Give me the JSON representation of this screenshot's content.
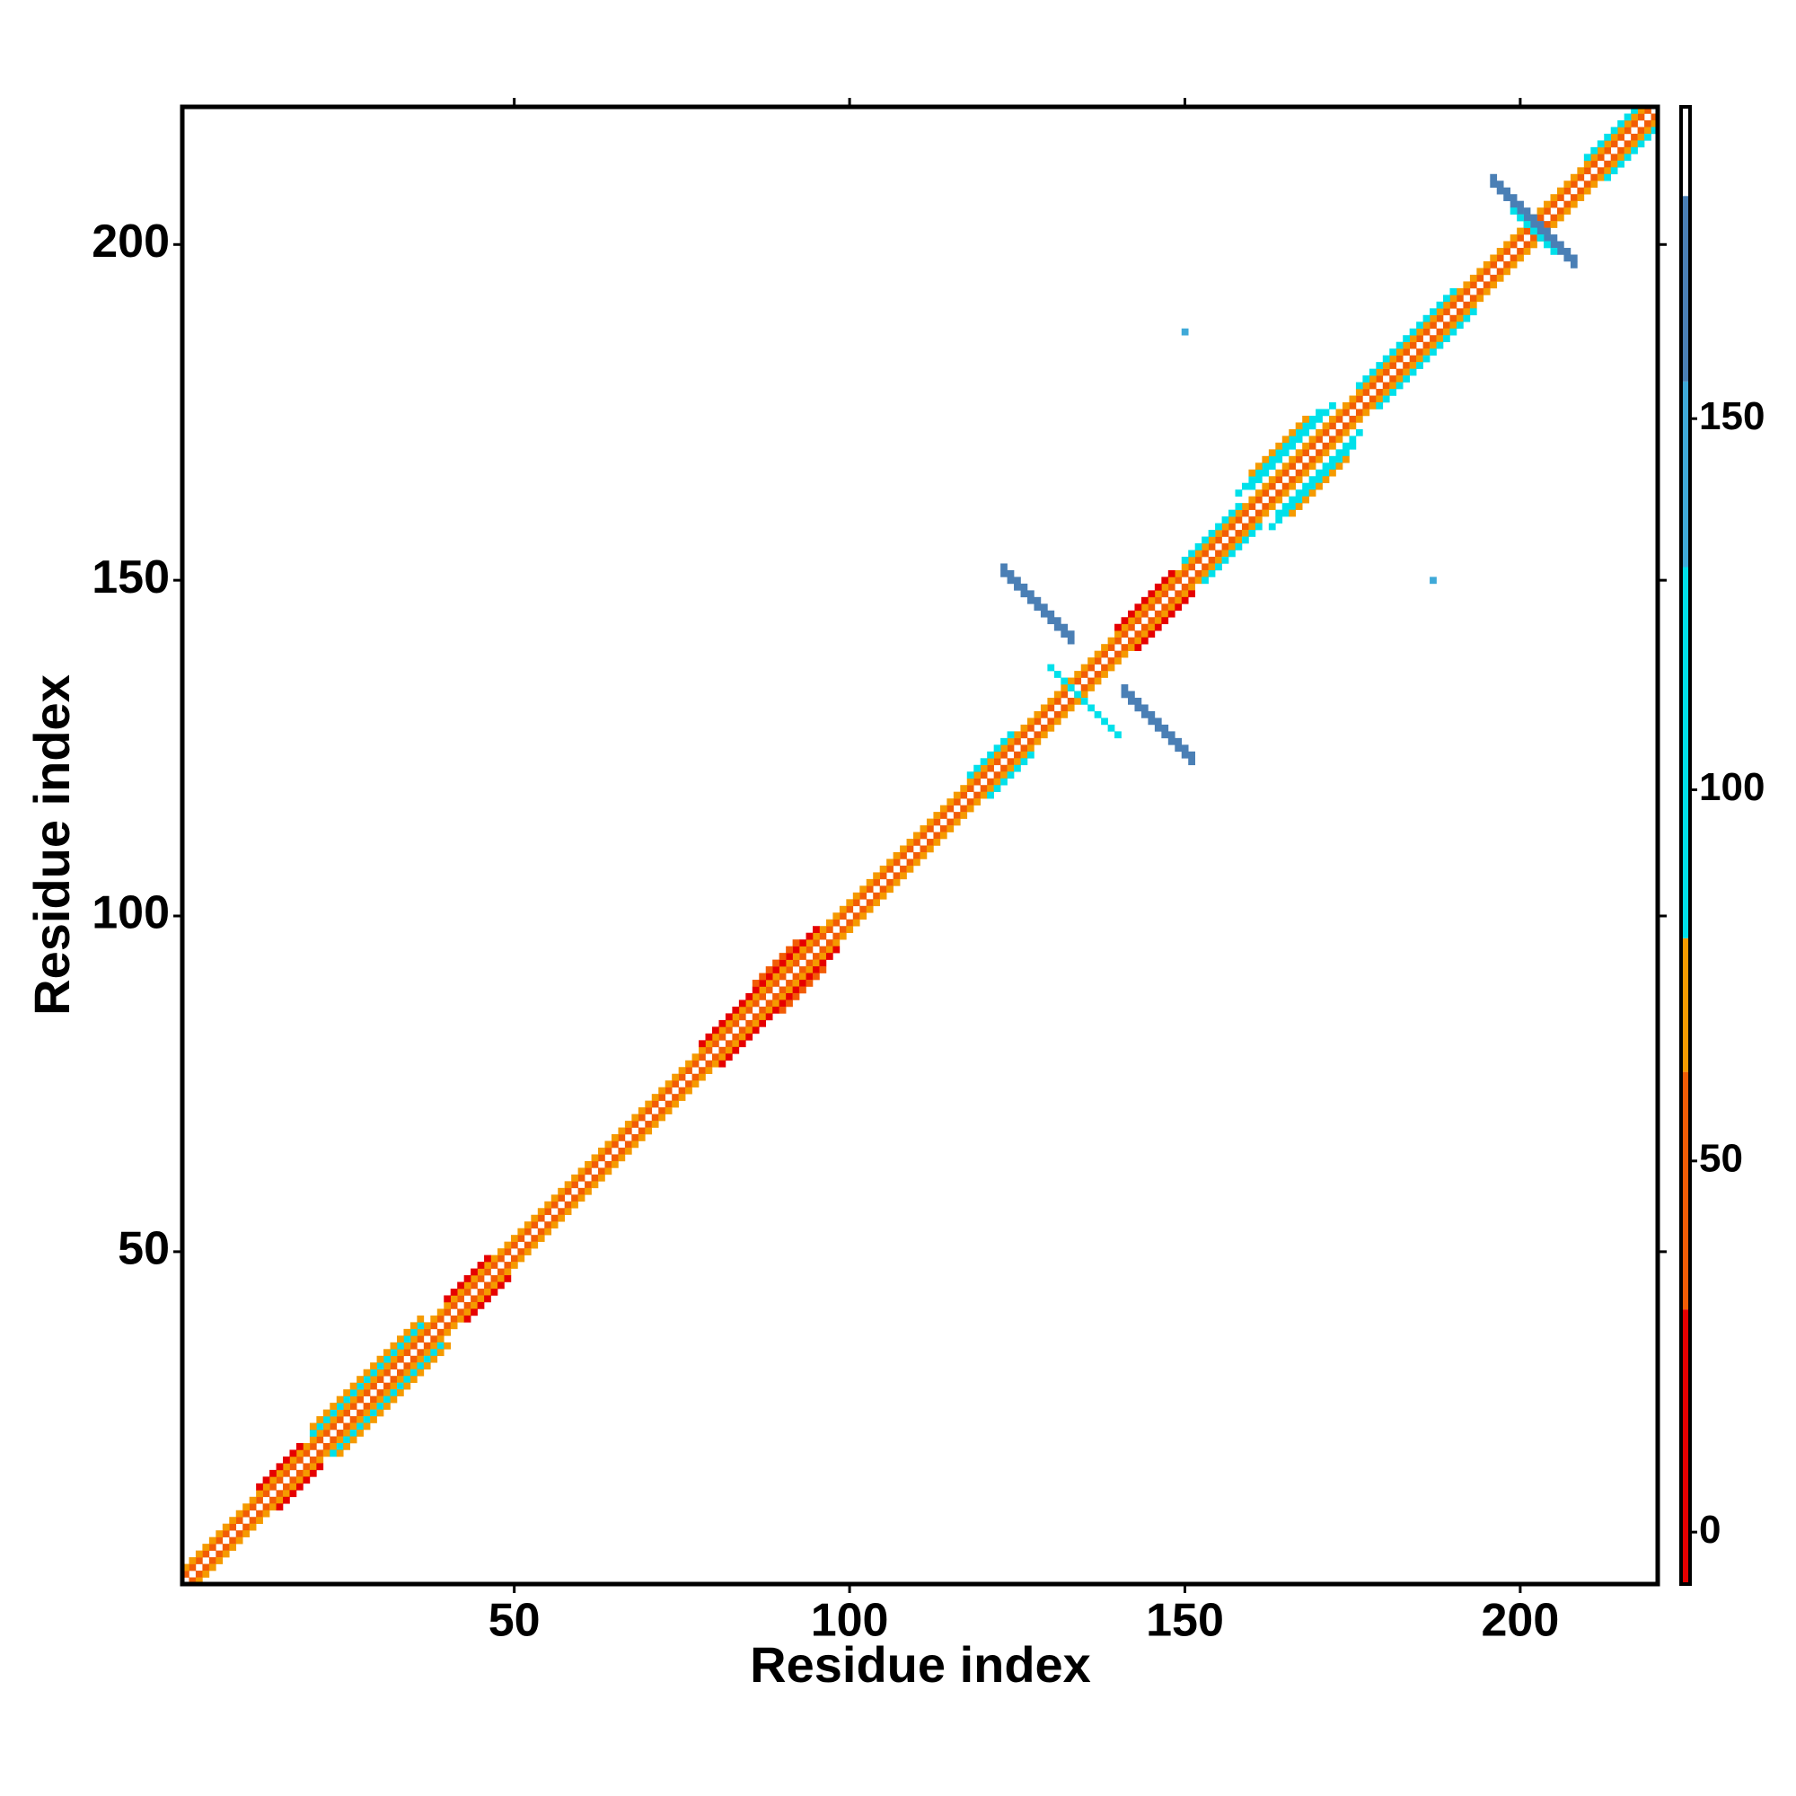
{
  "chart_data": {
    "type": "contact-map",
    "xlabel": "Residue index",
    "ylabel": "Residue index",
    "xlim": [
      0.5,
      220.5
    ],
    "ylim": [
      0.5,
      220.5
    ],
    "xticks": [
      50,
      100,
      150,
      200
    ],
    "yticks": [
      50,
      100,
      150,
      200
    ],
    "bands": [
      {
        "offset": 1,
        "start": 1,
        "end": 219,
        "value": 45
      },
      {
        "offset": 2,
        "start": 1,
        "end": 218,
        "value": 65
      },
      {
        "offset": 3,
        "start": 12,
        "end": 18,
        "value": 10
      },
      {
        "offset": 3,
        "start": 40,
        "end": 46,
        "value": 10
      },
      {
        "offset": 3,
        "start": 78,
        "end": 95,
        "value": 10
      },
      {
        "offset": 3,
        "start": 140,
        "end": 148,
        "value": 10
      },
      {
        "offset": 3,
        "start": 20,
        "end": 36,
        "value": 95
      },
      {
        "offset": 3,
        "start": 118,
        "end": 124,
        "value": 95
      },
      {
        "offset": 3,
        "start": 150,
        "end": 158,
        "value": 95
      },
      {
        "offset": 3,
        "start": 176,
        "end": 190,
        "value": 95
      },
      {
        "offset": 3,
        "start": 210,
        "end": 217,
        "value": 95
      },
      {
        "offset": 4,
        "start": 20,
        "end": 36,
        "value": 65
      },
      {
        "offset": 4,
        "start": 86,
        "end": 92,
        "value": 45
      },
      {
        "offset": 4,
        "start": 160,
        "end": 172,
        "value": 95
      },
      {
        "offset": 5,
        "start": 158,
        "end": 170,
        "value": 95
      },
      {
        "offset": 6,
        "start": 160,
        "end": 168,
        "value": 65
      }
    ],
    "antidiagonals": [
      {
        "sum": 274,
        "start": 123,
        "end": 133,
        "value": 155
      },
      {
        "sum": 275,
        "start": 123,
        "end": 133,
        "value": 155
      },
      {
        "sum": 274,
        "start": 141,
        "end": 151,
        "value": 155
      },
      {
        "sum": 275,
        "start": 141,
        "end": 151,
        "value": 155
      },
      {
        "sum": 267,
        "start": 130,
        "end": 140,
        "value": 95
      },
      {
        "sum": 405,
        "start": 196,
        "end": 208,
        "value": 155
      },
      {
        "sum": 406,
        "start": 196,
        "end": 208,
        "value": 155
      },
      {
        "sum": 404,
        "start": 199,
        "end": 205,
        "value": 95
      }
    ],
    "points": [
      {
        "x": 150,
        "y": 187,
        "value": 130
      },
      {
        "x": 187,
        "y": 150,
        "value": 130
      }
    ],
    "colorbar": {
      "lim": [
        -7,
        192
      ],
      "ticks": [
        0,
        50,
        100,
        150
      ],
      "breaks": [
        -7,
        30,
        62,
        80,
        130,
        155,
        180,
        192
      ],
      "colors": [
        "#e60000",
        "#f25c05",
        "#f59a00",
        "#00e0ea",
        "#3fa9d8",
        "#4a7fb5",
        "#ffffff"
      ]
    }
  }
}
